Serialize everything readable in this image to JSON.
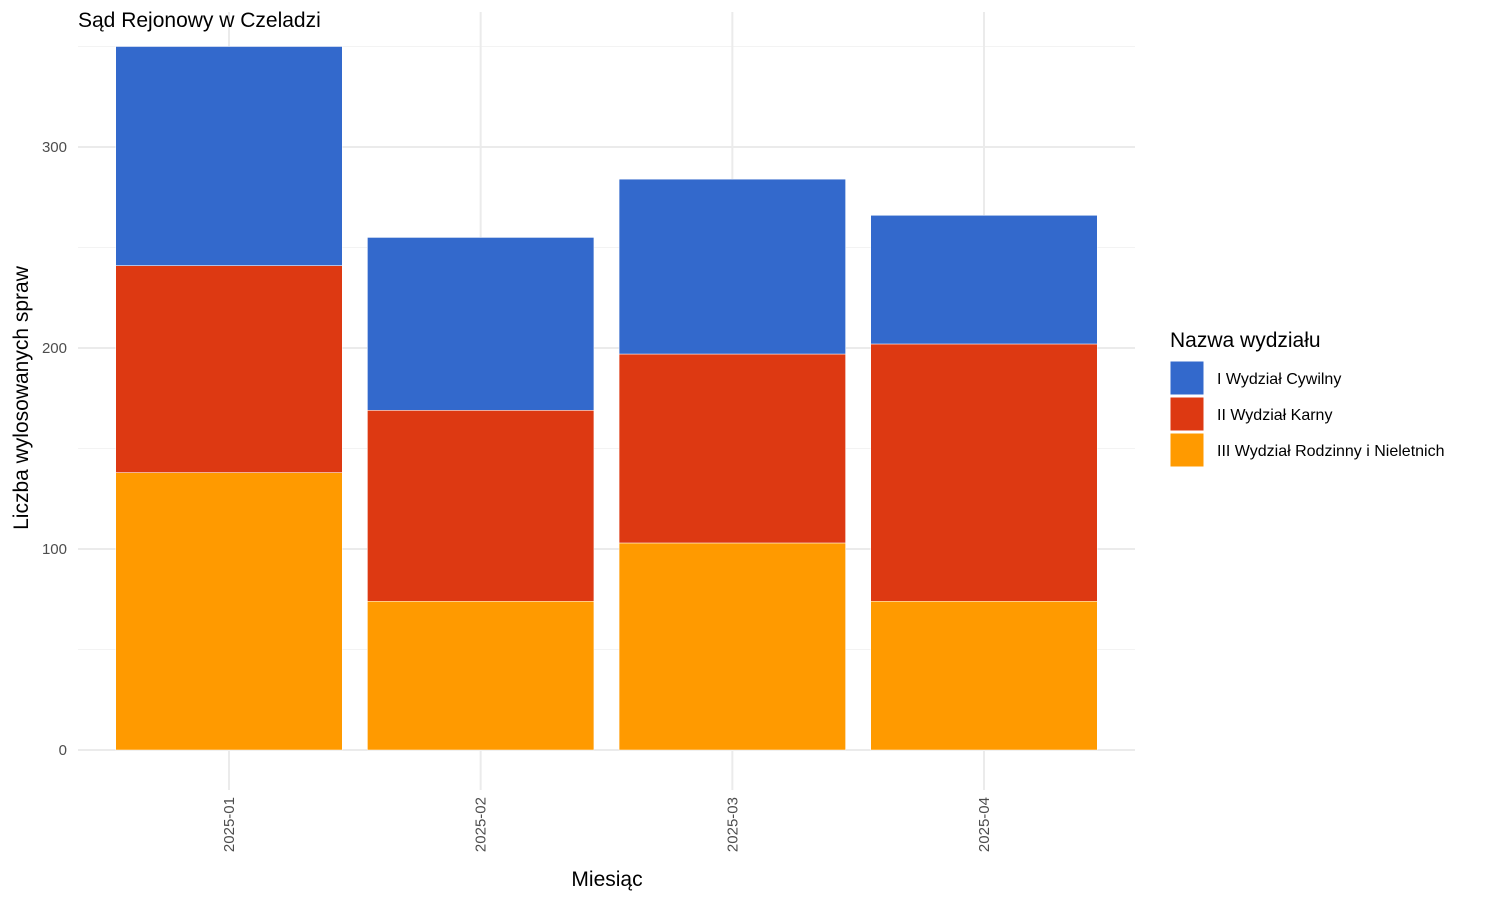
{
  "chart_data": {
    "type": "bar",
    "stacked": true,
    "title": "Sąd Rejonowy w Czeladzi",
    "xlabel": "Miesiąc",
    "ylabel": "Liczba wylosowanych spraw",
    "categories": [
      "2025-01",
      "2025-02",
      "2025-03",
      "2025-04"
    ],
    "yticks": [
      0,
      100,
      200,
      300
    ],
    "ylim": [
      0,
      350
    ],
    "grid": true,
    "legend": {
      "title": "Nazwa wydziału",
      "placement": "right"
    },
    "series": [
      {
        "name": "I Wydział Cywilny",
        "color": "#3369cc",
        "values": [
          109,
          86,
          87,
          64
        ]
      },
      {
        "name": "II Wydział Karny",
        "color": "#dd3912",
        "values": [
          103,
          95,
          94,
          128
        ]
      },
      {
        "name": "III Wydział Rodzinny i Nieletnich",
        "color": "#ff9a00",
        "values": [
          138,
          74,
          103,
          74
        ]
      }
    ]
  }
}
